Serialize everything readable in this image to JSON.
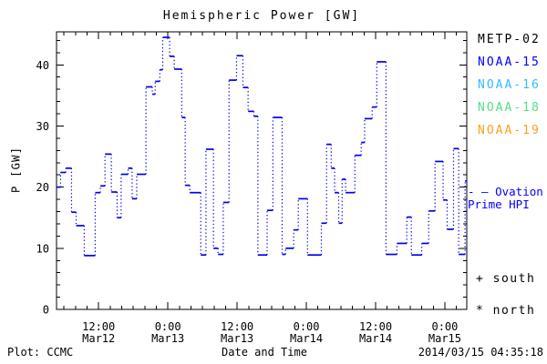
{
  "chart_data": {
    "type": "line",
    "step": true,
    "title": "Hemispheric Power [GW]",
    "xlabel": "Date and Time",
    "ylabel": "P [GW]",
    "x_unit": "hours since 2014-03-12 00:00 UT",
    "x_range": [
      4.7,
      75.8
    ],
    "y_range": [
      0,
      45.4
    ],
    "y_major_ticks": [
      0,
      10,
      20,
      30,
      40
    ],
    "y_minor_step": 2,
    "x_minor_step": 2,
    "x_major_ticks": [
      {
        "hours": 12,
        "time": "12:00",
        "date": "Mar12"
      },
      {
        "hours": 24,
        "time": "0:00",
        "date": "Mar13"
      },
      {
        "hours": 36,
        "time": "12:00",
        "date": "Mar13"
      },
      {
        "hours": 48,
        "time": "0:00",
        "date": "Mar14"
      },
      {
        "hours": 60,
        "time": "12:00",
        "date": "Mar14"
      },
      {
        "hours": 72,
        "time": "0:00",
        "date": "Mar15"
      }
    ],
    "legend": [
      {
        "label": "METP-02",
        "color": "#000000"
      },
      {
        "label": "NOAA-15",
        "color": "#0000ff"
      },
      {
        "label": "NOAA-16",
        "color": "#33bbff"
      },
      {
        "label": "NOAA-18",
        "color": "#55dd88"
      },
      {
        "label": "NOAA-19",
        "color": "#ff9f1f"
      }
    ],
    "series": [
      {
        "name": "Ovation Prime HPI",
        "color": "#0000ee",
        "style": "step-dotted-risers",
        "points": [
          [
            4.7,
            20.0
          ],
          [
            5.4,
            22.4
          ],
          [
            6.3,
            23.1
          ],
          [
            7.3,
            15.9
          ],
          [
            8.1,
            13.7
          ],
          [
            9.5,
            8.8
          ],
          [
            11.4,
            19.1
          ],
          [
            12.3,
            20.2
          ],
          [
            13.1,
            25.4
          ],
          [
            14.2,
            19.2
          ],
          [
            15.2,
            15.0
          ],
          [
            15.9,
            22.1
          ],
          [
            17.1,
            23.1
          ],
          [
            17.8,
            18.1
          ],
          [
            18.6,
            22.1
          ],
          [
            20.2,
            36.4
          ],
          [
            21.3,
            35.2
          ],
          [
            21.8,
            37.3
          ],
          [
            22.6,
            39.2
          ],
          [
            23.1,
            44.5
          ],
          [
            24.3,
            41.4
          ],
          [
            25.1,
            39.3
          ],
          [
            26.4,
            31.4
          ],
          [
            27.0,
            20.3
          ],
          [
            27.8,
            19.1
          ],
          [
            29.7,
            8.9
          ],
          [
            30.6,
            26.2
          ],
          [
            31.9,
            10.0
          ],
          [
            32.7,
            9.0
          ],
          [
            33.6,
            17.5
          ],
          [
            34.6,
            37.5
          ],
          [
            35.9,
            41.5
          ],
          [
            37.0,
            36.3
          ],
          [
            37.9,
            32.4
          ],
          [
            38.9,
            31.6
          ],
          [
            39.6,
            8.9
          ],
          [
            41.2,
            16.2
          ],
          [
            42.2,
            31.4
          ],
          [
            43.8,
            9.0
          ],
          [
            44.4,
            10.0
          ],
          [
            45.8,
            13.0
          ],
          [
            46.6,
            18.1
          ],
          [
            48.2,
            8.9
          ],
          [
            50.6,
            14.1
          ],
          [
            51.5,
            27.0
          ],
          [
            52.3,
            23.1
          ],
          [
            52.9,
            19.1
          ],
          [
            53.6,
            14.1
          ],
          [
            54.2,
            21.3
          ],
          [
            54.8,
            19.1
          ],
          [
            56.4,
            25.2
          ],
          [
            57.5,
            27.3
          ],
          [
            58.1,
            31.2
          ],
          [
            59.4,
            33.1
          ],
          [
            60.2,
            40.5
          ],
          [
            61.8,
            9.0
          ],
          [
            63.7,
            10.8
          ],
          [
            65.4,
            15.1
          ],
          [
            66.2,
            8.9
          ],
          [
            68.0,
            10.8
          ],
          [
            69.2,
            16.1
          ],
          [
            70.3,
            24.2
          ],
          [
            71.7,
            17.9
          ],
          [
            72.4,
            13.1
          ],
          [
            73.5,
            26.3
          ],
          [
            74.4,
            9.0
          ],
          [
            75.5,
            21.0
          ]
        ]
      }
    ]
  },
  "annotations": {
    "ovation": {
      "dash": "- —",
      "line1": "Ovation",
      "line2": "Prime HPI",
      "color": "#0000ff"
    },
    "south": "+ south",
    "north": "* north"
  },
  "footer": {
    "left": "Plot: CCMC",
    "right": "2014/03/15 04:35:18"
  }
}
